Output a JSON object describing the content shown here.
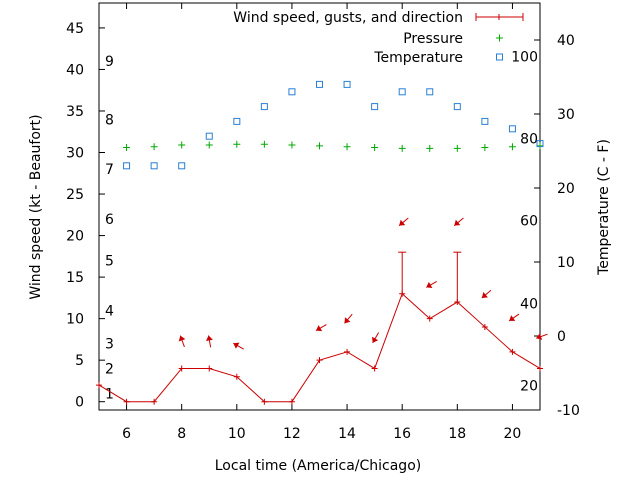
{
  "chart_data": {
    "type": "line",
    "xlabel": "Local time (America/Chicago)",
    "ylabel_left": "Wind speed (kt - Beaufort)",
    "ylabel_right": "Temperature (C - F)",
    "xlim": [
      5,
      21
    ],
    "ylim_left": [
      -1,
      48
    ],
    "ylim_right": [
      -10,
      45
    ],
    "x_ticks": [
      6,
      8,
      10,
      12,
      14,
      16,
      18,
      20
    ],
    "y_left_ticks": [
      0,
      5,
      10,
      15,
      20,
      25,
      30,
      35,
      40,
      45
    ],
    "y_right_ticks": [
      -10,
      0,
      10,
      20,
      30,
      40
    ],
    "beaufort_labels": [
      {
        "label": "1",
        "kt": 1
      },
      {
        "label": "2",
        "kt": 4
      },
      {
        "label": "3",
        "kt": 7
      },
      {
        "label": "4",
        "kt": 11
      },
      {
        "label": "5",
        "kt": 17
      },
      {
        "label": "6",
        "kt": 22
      },
      {
        "label": "7",
        "kt": 28
      },
      {
        "label": "8",
        "kt": 34
      },
      {
        "label": "9",
        "kt": 41
      }
    ],
    "fahrenheit_labels": [
      {
        "label": "20",
        "temp_c": -6.7
      },
      {
        "label": "40",
        "temp_c": 4.4
      },
      {
        "label": "60",
        "temp_c": 15.6
      },
      {
        "label": "80",
        "temp_c": 26.7
      },
      {
        "label": "100",
        "temp_c": 37.8
      }
    ],
    "legend": {
      "position": "top-right",
      "entries": [
        "Wind speed, gusts, and direction",
        "Pressure",
        "Temperature"
      ]
    },
    "series": [
      {
        "name": "Wind speed, gusts, and direction",
        "color": "#cc0000",
        "axis": "left",
        "x": [
          5,
          6,
          7,
          8,
          9,
          10,
          11,
          12,
          13,
          14,
          15,
          16,
          17,
          18,
          19,
          20,
          21
        ],
        "values": [
          2,
          0,
          0,
          4,
          4,
          3,
          0,
          0,
          5,
          6,
          4,
          13,
          10,
          12,
          9,
          6,
          4
        ],
        "gusts": [
          null,
          null,
          null,
          null,
          null,
          null,
          null,
          null,
          null,
          null,
          null,
          18,
          null,
          18,
          null,
          null,
          null
        ]
      },
      {
        "name": "Pressure",
        "color": "#00aa00",
        "axis": "left",
        "x": [
          6,
          7,
          8,
          9,
          10,
          11,
          12,
          13,
          14,
          15,
          16,
          17,
          18,
          19,
          20,
          21
        ],
        "values": [
          30.6,
          30.7,
          30.9,
          30.9,
          31.0,
          31.0,
          30.9,
          30.8,
          30.7,
          30.6,
          30.5,
          30.5,
          30.5,
          30.6,
          30.7,
          30.8
        ]
      },
      {
        "name": "Temperature",
        "color": "#2a7fd4",
        "axis": "right",
        "x": [
          6,
          7,
          8,
          9,
          10,
          11,
          12,
          13,
          14,
          15,
          16,
          17,
          18,
          19,
          20,
          21
        ],
        "values": [
          23,
          23,
          23,
          27,
          29,
          31,
          33,
          34,
          34,
          31,
          33,
          33,
          31,
          29,
          28,
          26
        ]
      }
    ],
    "wind_arrows": [
      {
        "x": 8,
        "y": 7.5,
        "angle": -110
      },
      {
        "x": 9,
        "y": 7.5,
        "angle": -100
      },
      {
        "x": 10,
        "y": 6.8,
        "angle": -150
      },
      {
        "x": 13,
        "y": 8.8,
        "angle": 150
      },
      {
        "x": 14,
        "y": 9.8,
        "angle": 130
      },
      {
        "x": 15,
        "y": 7.5,
        "angle": 120
      },
      {
        "x": 16,
        "y": 21.5,
        "angle": 140
      },
      {
        "x": 17,
        "y": 14.0,
        "angle": 150
      },
      {
        "x": 18,
        "y": 21.5,
        "angle": 140
      },
      {
        "x": 19,
        "y": 12.8,
        "angle": 140
      },
      {
        "x": 20,
        "y": 10.0,
        "angle": 145
      },
      {
        "x": 21,
        "y": 7.8,
        "angle": 160
      }
    ]
  }
}
